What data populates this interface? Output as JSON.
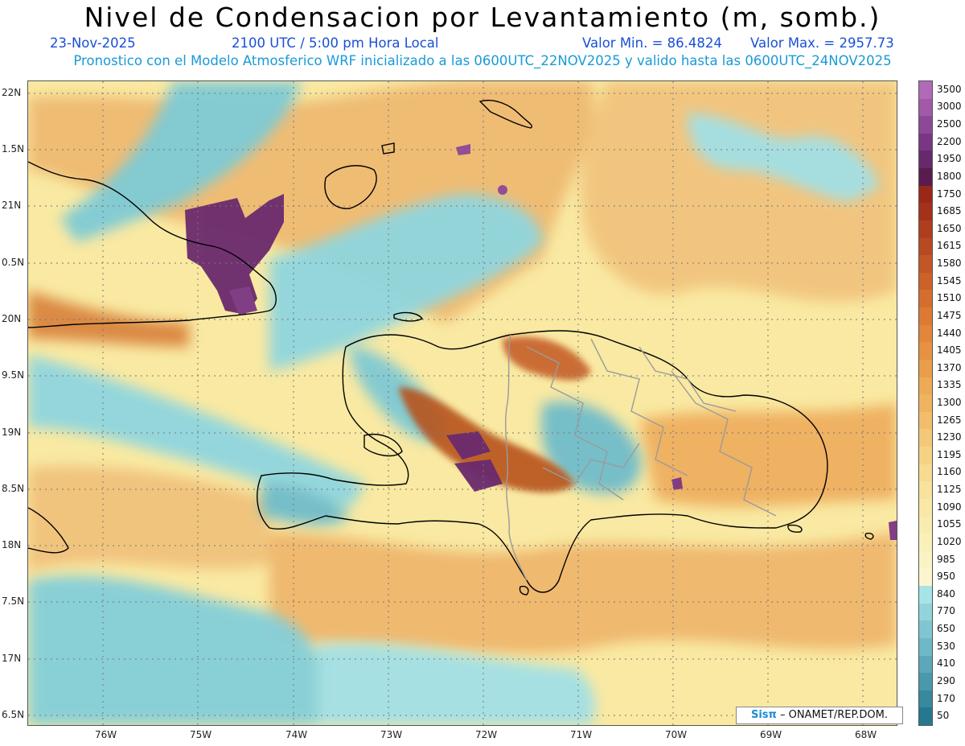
{
  "title": "Nivel de Condensacion por Levantamiento (m, somb.)",
  "date": "23-Nov-2025",
  "time": "2100 UTC / 5:00 pm Hora Local",
  "valor_min": "Valor Min. = 86.4824",
  "valor_max": "Valor Max. = 2957.73",
  "model_info": "Pronostico con el Modelo Atmosferico WRF inicializado a las 0600UTC_22NOV2025 y valido hasta las  0600UTC_24NOV2025",
  "credit_sis": "Sisπ",
  "credit_rest": "– ONAMET/REP.DOM.",
  "lat_labels": [
    "22N",
    "1.5N",
    "21N",
    "0.5N",
    "20N",
    "9.5N",
    "19N",
    "8.5N",
    "18N",
    "7.5N",
    "17N",
    "6.5N"
  ],
  "lon_labels": [
    "76W",
    "75W",
    "74W",
    "73W",
    "72W",
    "71W",
    "70W",
    "69W",
    "68W"
  ],
  "colorbar": {
    "labels": [
      "3500",
      "3000",
      "2500",
      "2200",
      "1950",
      "1800",
      "1750",
      "1685",
      "1650",
      "1615",
      "1580",
      "1545",
      "1510",
      "1475",
      "1440",
      "1405",
      "1370",
      "1335",
      "1300",
      "1265",
      "1230",
      "1195",
      "1160",
      "1125",
      "1090",
      "1055",
      "1020",
      "985",
      "950",
      "840",
      "770",
      "650",
      "530",
      "410",
      "290",
      "170",
      "50"
    ],
    "colors": [
      "#b06ab8",
      "#a25aa8",
      "#8e4898",
      "#7a3684",
      "#662a6c",
      "#5a1c4e",
      "#9a2818",
      "#a4321a",
      "#ae3e1e",
      "#b84a22",
      "#c25626",
      "#cc622a",
      "#d46e2e",
      "#dc7a34",
      "#e2863a",
      "#e69242",
      "#ea9e4a",
      "#eeaa54",
      "#f0b460",
      "#f2be6c",
      "#f4c878",
      "#f6d284",
      "#f8da90",
      "#f8e29c",
      "#f9e8a6",
      "#f9ecb0",
      "#faf0ba",
      "#faf3c4",
      "#fbf6ce",
      "#a6e4e8",
      "#92d4dc",
      "#80c6d2",
      "#6eb8c8",
      "#5ca8ba",
      "#4a98ac",
      "#38889e",
      "#267890"
    ]
  }
}
